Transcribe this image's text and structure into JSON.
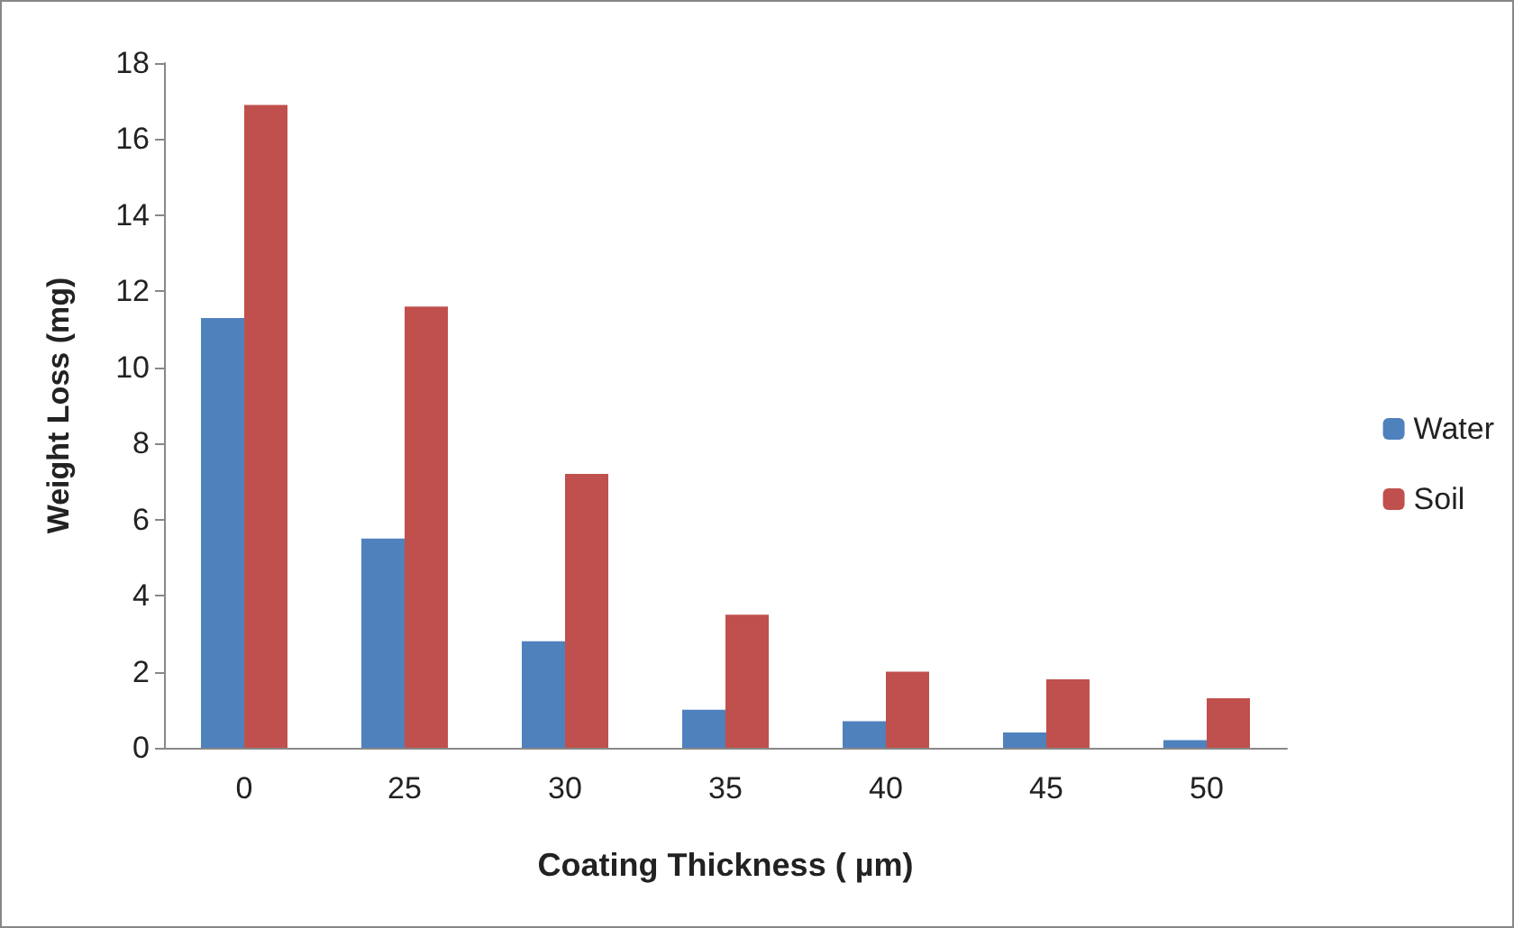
{
  "chart_data": {
    "type": "bar",
    "xlabel": "Coating Thickness ( µm)",
    "ylabel": "Weight Loss (mg)",
    "categories": [
      "0",
      "25",
      "30",
      "35",
      "40",
      "45",
      "50"
    ],
    "series": [
      {
        "name": "Water",
        "color": "#4f81bd",
        "values": [
          11.3,
          5.5,
          2.8,
          1.0,
          0.7,
          0.4,
          0.2
        ]
      },
      {
        "name": "Soil",
        "color": "#c0504d",
        "values": [
          16.9,
          11.6,
          7.2,
          3.5,
          2.0,
          1.8,
          1.3
        ]
      }
    ],
    "ylim": [
      0,
      18
    ],
    "yticks": [
      0,
      2,
      4,
      6,
      8,
      10,
      12,
      14,
      16,
      18
    ],
    "grid": false,
    "legend": "right"
  }
}
